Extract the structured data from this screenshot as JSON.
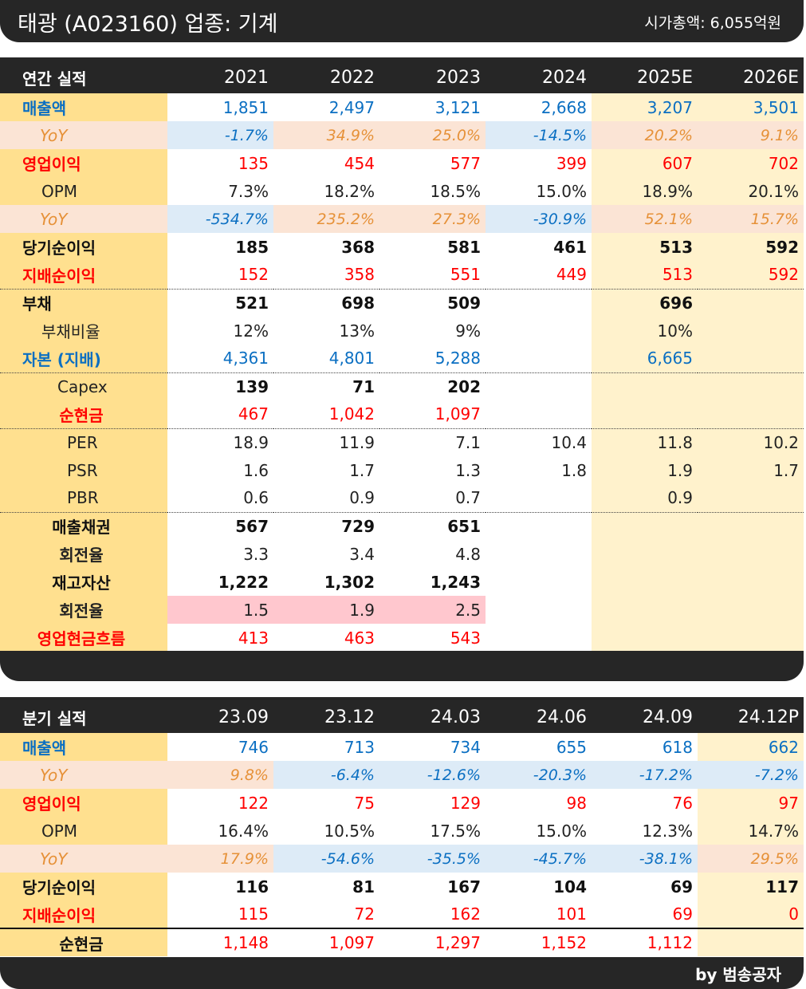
{
  "header": {
    "title": "태광 (A023160) 업종: 기계",
    "market_cap": "시가총액: 6,055억원"
  },
  "annual": {
    "title": "연간 실적",
    "years": [
      "2021",
      "2022",
      "2023",
      "2024",
      "2025E",
      "2026E"
    ],
    "rows": {
      "sales": {
        "label": "매출액",
        "values": [
          "1,851",
          "2,497",
          "3,121",
          "2,668",
          "3,207",
          "3,501"
        ]
      },
      "sales_yoy": {
        "label": "YoY",
        "values": [
          "-1.7%",
          "34.9%",
          "25.0%",
          "-14.5%",
          "20.2%",
          "9.1%"
        ]
      },
      "op": {
        "label": "영업이익",
        "values": [
          "135",
          "454",
          "577",
          "399",
          "607",
          "702"
        ]
      },
      "opm": {
        "label": "OPM",
        "values": [
          "7.3%",
          "18.2%",
          "18.5%",
          "15.0%",
          "18.9%",
          "20.1%"
        ]
      },
      "op_yoy": {
        "label": "YoY",
        "values": [
          "-534.7%",
          "235.2%",
          "27.3%",
          "-30.9%",
          "52.1%",
          "15.7%"
        ]
      },
      "ni": {
        "label": "당기순이익",
        "values": [
          "185",
          "368",
          "581",
          "461",
          "513",
          "592"
        ]
      },
      "ni_ctrl": {
        "label": "지배순이익",
        "values": [
          "152",
          "358",
          "551",
          "449",
          "513",
          "592"
        ]
      },
      "debt": {
        "label": "부채",
        "values": [
          "521",
          "698",
          "509",
          "",
          "696",
          ""
        ]
      },
      "debt_ratio": {
        "label": "부채비율",
        "values": [
          "12%",
          "13%",
          "9%",
          "",
          "10%",
          ""
        ]
      },
      "equity": {
        "label": "자본 (지배)",
        "values": [
          "4,361",
          "4,801",
          "5,288",
          "",
          "6,665",
          ""
        ]
      },
      "capex": {
        "label": "Capex",
        "values": [
          "139",
          "71",
          "202",
          "",
          "",
          ""
        ]
      },
      "net_cash": {
        "label": "순현금",
        "values": [
          "467",
          "1,042",
          "1,097",
          "",
          "",
          ""
        ]
      },
      "per": {
        "label": "PER",
        "values": [
          "18.9",
          "11.9",
          "7.1",
          "10.4",
          "11.8",
          "10.2"
        ]
      },
      "psr": {
        "label": "PSR",
        "values": [
          "1.6",
          "1.7",
          "1.3",
          "1.8",
          "1.9",
          "1.7"
        ]
      },
      "pbr": {
        "label": "PBR",
        "values": [
          "0.6",
          "0.9",
          "0.7",
          "",
          "0.9",
          ""
        ]
      },
      "receivables": {
        "label": "매출채권",
        "values": [
          "567",
          "729",
          "651",
          "",
          "",
          ""
        ]
      },
      "recv_turn": {
        "label": "회전율",
        "values": [
          "3.3",
          "3.4",
          "4.8",
          "",
          "",
          ""
        ]
      },
      "inventory": {
        "label": "재고자산",
        "values": [
          "1,222",
          "1,302",
          "1,243",
          "",
          "",
          ""
        ]
      },
      "inv_turn": {
        "label": "회전율",
        "values": [
          "1.5",
          "1.9",
          "2.5",
          "",
          "",
          ""
        ]
      },
      "ocf": {
        "label": "영업현금흐름",
        "values": [
          "413",
          "463",
          "543",
          "",
          "",
          ""
        ]
      }
    }
  },
  "quarterly": {
    "title": "분기 실적",
    "periods": [
      "23.09",
      "23.12",
      "24.03",
      "24.06",
      "24.09",
      "24.12P"
    ],
    "rows": {
      "sales": {
        "label": "매출액",
        "values": [
          "746",
          "713",
          "734",
          "655",
          "618",
          "662"
        ]
      },
      "sales_yoy": {
        "label": "YoY",
        "values": [
          "9.8%",
          "-6.4%",
          "-12.6%",
          "-20.3%",
          "-17.2%",
          "-7.2%"
        ]
      },
      "op": {
        "label": "영업이익",
        "values": [
          "122",
          "75",
          "129",
          "98",
          "76",
          "97"
        ]
      },
      "opm": {
        "label": "OPM",
        "values": [
          "16.4%",
          "10.5%",
          "17.5%",
          "15.0%",
          "12.3%",
          "14.7%"
        ]
      },
      "op_yoy": {
        "label": "YoY",
        "values": [
          "17.9%",
          "-54.6%",
          "-35.5%",
          "-45.7%",
          "-38.1%",
          "29.5%"
        ]
      },
      "ni": {
        "label": "당기순이익",
        "values": [
          "116",
          "81",
          "167",
          "104",
          "69",
          "117"
        ]
      },
      "ni_ctrl": {
        "label": "지배순이익",
        "values": [
          "115",
          "72",
          "162",
          "101",
          "69",
          "0"
        ]
      },
      "net_cash": {
        "label": "순현금",
        "values": [
          "1,148",
          "1,097",
          "1,297",
          "1,152",
          "1,112",
          ""
        ]
      }
    }
  },
  "footer": {
    "credit": "by 범송공자"
  }
}
